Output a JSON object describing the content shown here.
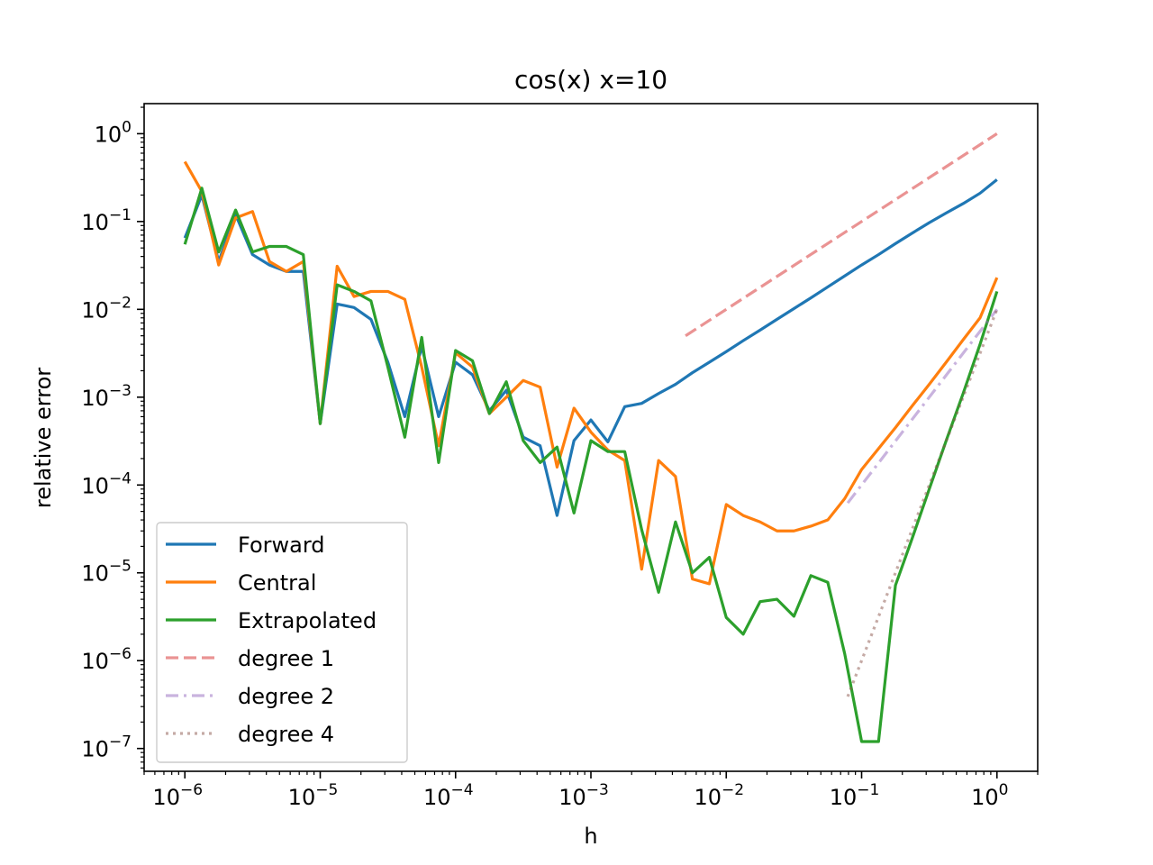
{
  "chart_data": {
    "type": "line",
    "title": "cos(x) x=10",
    "xlabel": "h",
    "ylabel": "relative error",
    "xscale": "log",
    "yscale": "log",
    "xlim": [
      5e-07,
      2
    ],
    "ylim": [
      5.5e-08,
      2.2
    ],
    "legend_position": "bottom-left",
    "xticks": [
      {
        "value": 1e-06,
        "base": "10",
        "exp": "−6"
      },
      {
        "value": 1e-05,
        "base": "10",
        "exp": "−5"
      },
      {
        "value": 0.0001,
        "base": "10",
        "exp": "−4"
      },
      {
        "value": 0.001,
        "base": "10",
        "exp": "−3"
      },
      {
        "value": 0.01,
        "base": "10",
        "exp": "−2"
      },
      {
        "value": 0.1,
        "base": "10",
        "exp": "−1"
      },
      {
        "value": 1,
        "base": "10",
        "exp": "0"
      }
    ],
    "yticks": [
      {
        "value": 1e-07,
        "base": "10",
        "exp": "−7"
      },
      {
        "value": 1e-06,
        "base": "10",
        "exp": "−6"
      },
      {
        "value": 1e-05,
        "base": "10",
        "exp": "−5"
      },
      {
        "value": 0.0001,
        "base": "10",
        "exp": "−4"
      },
      {
        "value": 0.001,
        "base": "10",
        "exp": "−3"
      },
      {
        "value": 0.01,
        "base": "10",
        "exp": "−2"
      },
      {
        "value": 0.1,
        "base": "10",
        "exp": "−1"
      },
      {
        "value": 1,
        "base": "10",
        "exp": "0"
      }
    ],
    "series": [
      {
        "name": "Forward",
        "color": "#1f77b4",
        "dash": "solid",
        "opacity": 1,
        "points": [
          [
            1e-06,
            0.065
          ],
          [
            1.334e-06,
            0.2
          ],
          [
            1.778e-06,
            0.035
          ],
          [
            2.371e-06,
            0.12
          ],
          [
            3.162e-06,
            0.042
          ],
          [
            4.217e-06,
            0.032
          ],
          [
            5.623e-06,
            0.027
          ],
          [
            7.499e-06,
            0.027
          ],
          [
            1e-05,
            0.0005
          ],
          [
            1.334e-05,
            0.0115
          ],
          [
            1.778e-05,
            0.0105
          ],
          [
            2.371e-05,
            0.0077
          ],
          [
            3.162e-05,
            0.0025
          ],
          [
            4.217e-05,
            0.0006
          ],
          [
            5.623e-05,
            0.0038
          ],
          [
            7.499e-05,
            0.0006
          ],
          [
            0.0001,
            0.0025
          ],
          [
            0.0001334,
            0.0018
          ],
          [
            0.0001778,
            0.0007
          ],
          [
            0.0002371,
            0.0012
          ],
          [
            0.0003162,
            0.00035
          ],
          [
            0.0004217,
            0.00028
          ],
          [
            0.0005623,
            4.5e-05
          ],
          [
            0.0007499,
            0.00032
          ],
          [
            0.001,
            0.00055
          ],
          [
            0.001334,
            0.00031
          ],
          [
            0.001778,
            0.00078
          ],
          [
            0.002371,
            0.00085
          ],
          [
            0.003162,
            0.0011
          ],
          [
            0.004217,
            0.0014
          ],
          [
            0.005623,
            0.0019
          ],
          [
            0.007499,
            0.0025
          ],
          [
            0.01,
            0.0033
          ],
          [
            0.01334,
            0.0044
          ],
          [
            0.01778,
            0.0058
          ],
          [
            0.02371,
            0.0077
          ],
          [
            0.03162,
            0.0102
          ],
          [
            0.04217,
            0.0135
          ],
          [
            0.05623,
            0.018
          ],
          [
            0.07499,
            0.024
          ],
          [
            0.1,
            0.032
          ],
          [
            0.1334,
            0.042
          ],
          [
            0.1778,
            0.056
          ],
          [
            0.2371,
            0.074
          ],
          [
            0.3162,
            0.097
          ],
          [
            0.4217,
            0.125
          ],
          [
            0.5623,
            0.16
          ],
          [
            0.7499,
            0.21
          ],
          [
            1,
            0.3
          ]
        ]
      },
      {
        "name": "Central",
        "color": "#ff7f0e",
        "dash": "solid",
        "opacity": 1,
        "points": [
          [
            1e-06,
            0.48
          ],
          [
            1.334e-06,
            0.22
          ],
          [
            1.778e-06,
            0.032
          ],
          [
            2.371e-06,
            0.11
          ],
          [
            3.162e-06,
            0.13
          ],
          [
            4.217e-06,
            0.035
          ],
          [
            5.623e-06,
            0.027
          ],
          [
            7.499e-06,
            0.035
          ],
          [
            1e-05,
            0.0005
          ],
          [
            1.334e-05,
            0.031
          ],
          [
            1.778e-05,
            0.014
          ],
          [
            2.371e-05,
            0.016
          ],
          [
            3.162e-05,
            0.016
          ],
          [
            4.217e-05,
            0.013
          ],
          [
            5.623e-05,
            0.0022
          ],
          [
            7.499e-05,
            0.00028
          ],
          [
            0.0001,
            0.0032
          ],
          [
            0.0001334,
            0.0022
          ],
          [
            0.0001778,
            0.00065
          ],
          [
            0.0002371,
            0.001
          ],
          [
            0.0003162,
            0.00155
          ],
          [
            0.0004217,
            0.0013
          ],
          [
            0.0005623,
            0.00016
          ],
          [
            0.0007499,
            0.00075
          ],
          [
            0.001,
            0.0004
          ],
          [
            0.001334,
            0.00025
          ],
          [
            0.001778,
            0.00019
          ],
          [
            0.002371,
            1.1e-05
          ],
          [
            0.003162,
            0.00019
          ],
          [
            0.004217,
            0.000125
          ],
          [
            0.005623,
            8.5e-06
          ],
          [
            0.007499,
            7.5e-06
          ],
          [
            0.01,
            6e-05
          ],
          [
            0.01334,
            4.5e-05
          ],
          [
            0.01778,
            3.8e-05
          ],
          [
            0.02371,
            3e-05
          ],
          [
            0.03162,
            3e-05
          ],
          [
            0.04217,
            3.4e-05
          ],
          [
            0.05623,
            4e-05
          ],
          [
            0.07499,
            7e-05
          ],
          [
            0.1,
            0.00015
          ],
          [
            0.1334,
            0.00026
          ],
          [
            0.1778,
            0.00045
          ],
          [
            0.2371,
            0.0008
          ],
          [
            0.3162,
            0.0014
          ],
          [
            0.4217,
            0.0025
          ],
          [
            0.5623,
            0.0045
          ],
          [
            0.7499,
            0.008
          ],
          [
            1,
            0.023
          ]
        ]
      },
      {
        "name": "Extrapolated",
        "color": "#2ca02c",
        "dash": "solid",
        "opacity": 1,
        "points": [
          [
            1e-06,
            0.055
          ],
          [
            1.334e-06,
            0.24
          ],
          [
            1.778e-06,
            0.045
          ],
          [
            2.371e-06,
            0.135
          ],
          [
            3.162e-06,
            0.045
          ],
          [
            4.217e-06,
            0.052
          ],
          [
            5.623e-06,
            0.052
          ],
          [
            7.499e-06,
            0.042
          ],
          [
            1e-05,
            0.0005
          ],
          [
            1.334e-05,
            0.019
          ],
          [
            1.778e-05,
            0.016
          ],
          [
            2.371e-05,
            0.0125
          ],
          [
            3.162e-05,
            0.0022
          ],
          [
            4.217e-05,
            0.00035
          ],
          [
            5.623e-05,
            0.0048
          ],
          [
            7.499e-05,
            0.00018
          ],
          [
            0.0001,
            0.0034
          ],
          [
            0.0001334,
            0.0026
          ],
          [
            0.0001778,
            0.00065
          ],
          [
            0.0002371,
            0.0015
          ],
          [
            0.0003162,
            0.00032
          ],
          [
            0.0004217,
            0.00018
          ],
          [
            0.0005623,
            0.00027
          ],
          [
            0.0007499,
            4.8e-05
          ],
          [
            0.001,
            0.00032
          ],
          [
            0.001334,
            0.00024
          ],
          [
            0.001778,
            0.00024
          ],
          [
            0.002371,
            3.1e-05
          ],
          [
            0.003162,
            6e-06
          ],
          [
            0.004217,
            3.8e-05
          ],
          [
            0.005623,
            1e-05
          ],
          [
            0.007499,
            1.5e-05
          ],
          [
            0.01,
            3.1e-06
          ],
          [
            0.01334,
            2e-06
          ],
          [
            0.01778,
            4.7e-06
          ],
          [
            0.02371,
            5e-06
          ],
          [
            0.03162,
            3.2e-06
          ],
          [
            0.04217,
            9.3e-06
          ],
          [
            0.05623,
            7.8e-06
          ],
          [
            0.07499,
            1.2e-06
          ],
          [
            0.1,
            1.2e-07
          ],
          [
            0.1334,
            1.2e-07
          ],
          [
            0.1778,
            7.2e-06
          ],
          [
            0.2371,
            2.5e-05
          ],
          [
            0.3162,
            9e-05
          ],
          [
            0.4217,
            0.00032
          ],
          [
            0.5623,
            0.0011
          ],
          [
            0.7499,
            0.004
          ],
          [
            1,
            0.016
          ]
        ]
      },
      {
        "name": "degree 1",
        "color": "#d62728",
        "dash": "dashed",
        "opacity": 0.5,
        "points": [
          [
            0.005,
            0.005
          ],
          [
            1,
            1
          ]
        ]
      },
      {
        "name": "degree 2",
        "color": "#9467bd",
        "dash": "dashdot",
        "opacity": 0.5,
        "points": [
          [
            0.079,
            6.25e-05
          ],
          [
            1,
            0.01
          ]
        ]
      },
      {
        "name": "degree 4",
        "color": "#8c564b",
        "dash": "dotted",
        "opacity": 0.5,
        "points": [
          [
            0.079,
            3.9e-07
          ],
          [
            1,
            0.01
          ]
        ]
      }
    ]
  }
}
